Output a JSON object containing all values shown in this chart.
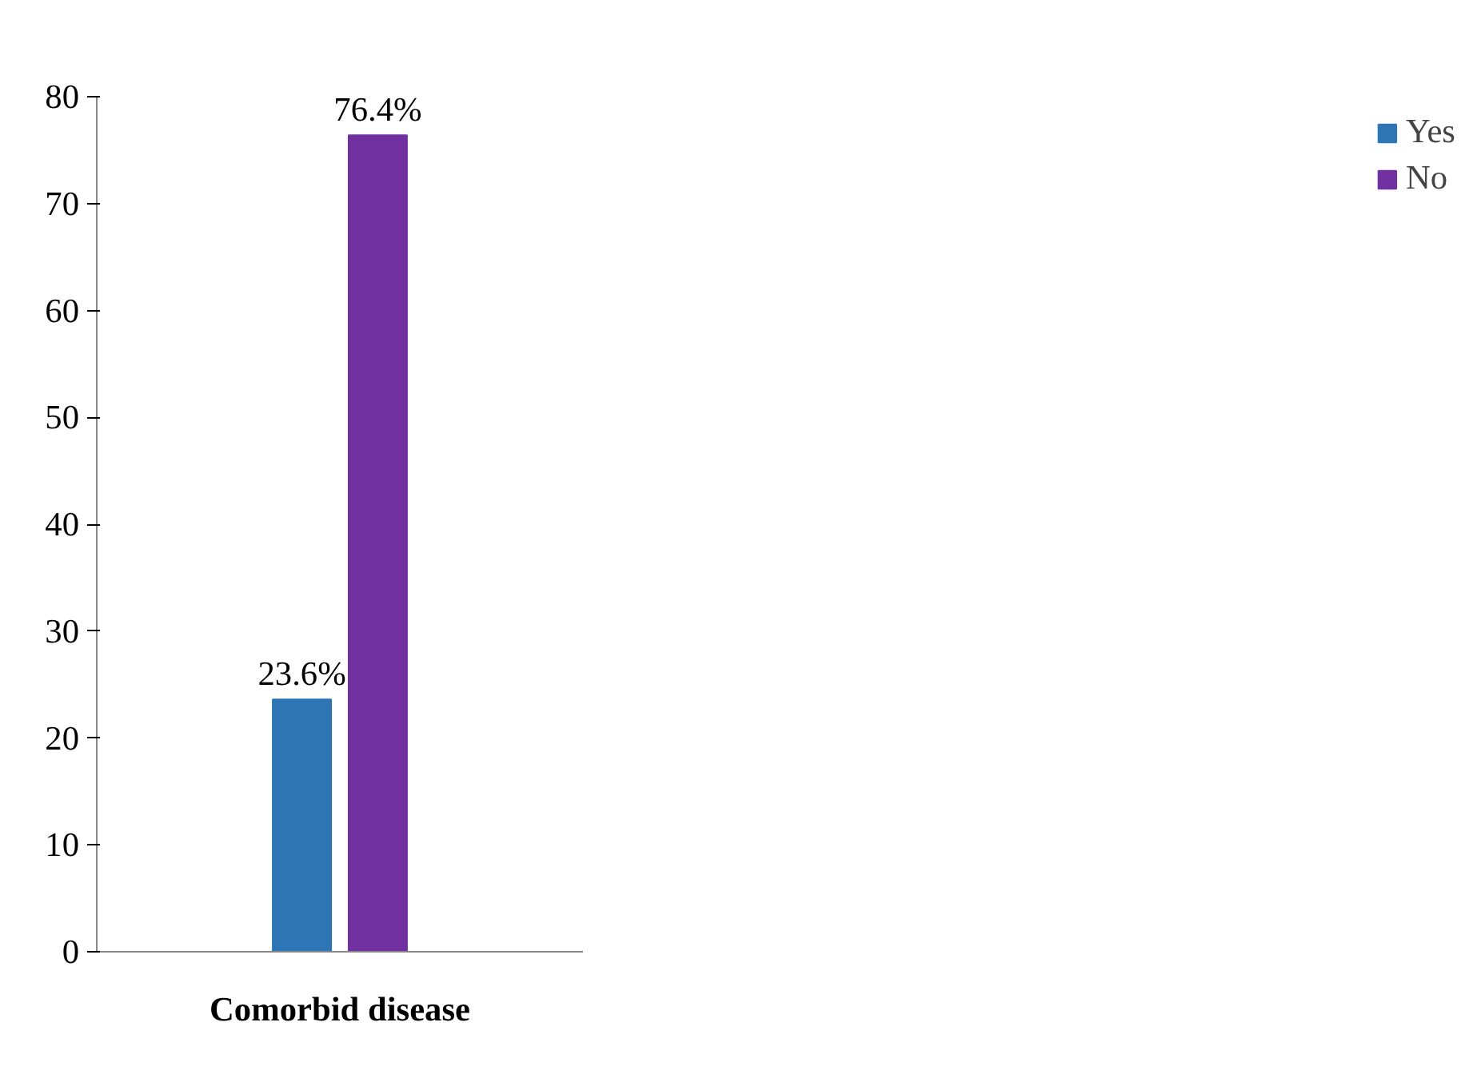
{
  "chart_data": {
    "type": "bar",
    "categories": [
      "Comorbid disease"
    ],
    "series": [
      {
        "name": "Yes",
        "color": "#2e75b6",
        "values": [
          23.6
        ],
        "value_labels": [
          "23.6%"
        ]
      },
      {
        "name": "No",
        "color": "#7030a0",
        "values": [
          76.4
        ],
        "value_labels": [
          "76.4%"
        ]
      }
    ],
    "ylim": [
      0,
      80
    ],
    "yticks": [
      0,
      10,
      20,
      30,
      40,
      50,
      60,
      70,
      80
    ],
    "grid": false,
    "legend": "right"
  }
}
